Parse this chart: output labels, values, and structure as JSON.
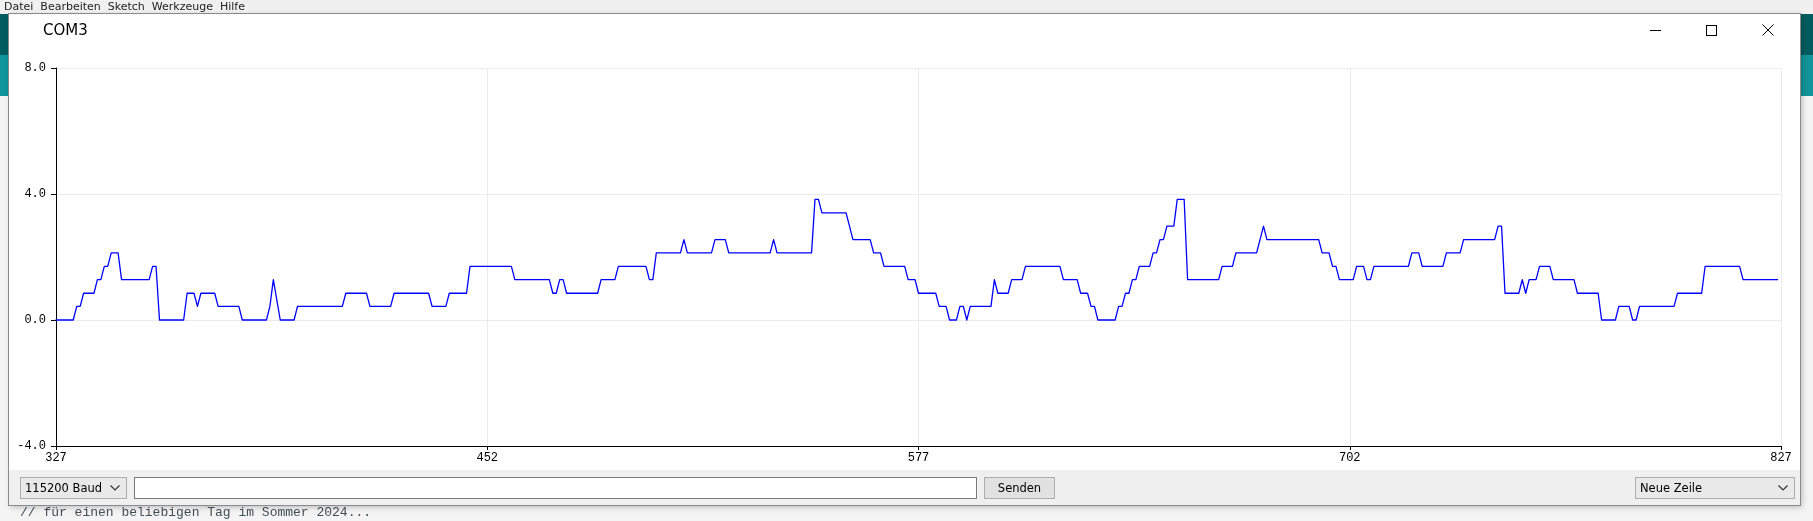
{
  "chart_data": {
    "type": "line",
    "title": "COM3",
    "annotations": [
      "Datei  Bearbeiten  Sketch  Werkzeuge  Hilfe",
      "115200 Baud",
      "Senden",
      "Neue Zeile",
      "// für einen beliebigen Tag im Sommer 2024..."
    ],
    "x": [
      327,
      332,
      333,
      334,
      335,
      338,
      339,
      340,
      341,
      342,
      343,
      345,
      346,
      354,
      355,
      356,
      357,
      364,
      365,
      367,
      368,
      369,
      373,
      374,
      380,
      381,
      388,
      389,
      390,
      392,
      396,
      397,
      410,
      411,
      417,
      418,
      424,
      425,
      435,
      436,
      440,
      441,
      446,
      447,
      459,
      460,
      470,
      471,
      472,
      473,
      474,
      475,
      484,
      485,
      489,
      490,
      498,
      499,
      500,
      501,
      508,
      509,
      510,
      517,
      518,
      521,
      522,
      534,
      535,
      536,
      546,
      547,
      548,
      549,
      556,
      557,
      558,
      563,
      564,
      566,
      567,
      573,
      574,
      576,
      577,
      582,
      583,
      585,
      586,
      588,
      589,
      590,
      591,
      592,
      598,
      599,
      600,
      603,
      604,
      607,
      608,
      618,
      619,
      623,
      624,
      626,
      627,
      628,
      629,
      634,
      635,
      636,
      637,
      638,
      639,
      640,
      641,
      644,
      645,
      646,
      647,
      648,
      649,
      651,
      652,
      654,
      655,
      664,
      665,
      668,
      669,
      675,
      676,
      677,
      678,
      693,
      694,
      696,
      697,
      698,
      699,
      703,
      704,
      706,
      707,
      708,
      709,
      719,
      720,
      722,
      723,
      729,
      730,
      734,
      735,
      744,
      745,
      746,
      747,
      751,
      752,
      753,
      754,
      756,
      757,
      760,
      761,
      767,
      768,
      774,
      775,
      779,
      780,
      783,
      784,
      785,
      786,
      796,
      797,
      804,
      805,
      815,
      816,
      826
    ],
    "values": [
      0,
      0,
      0.43,
      0.43,
      0.85,
      0.85,
      1.28,
      1.28,
      1.7,
      1.7,
      2.13,
      2.13,
      1.28,
      1.28,
      1.7,
      1.7,
      0,
      0,
      0.85,
      0.85,
      0.43,
      0.85,
      0.85,
      0.43,
      0.43,
      0,
      0,
      0.43,
      1.28,
      0,
      0,
      0.43,
      0.43,
      0.85,
      0.85,
      0.43,
      0.43,
      0.85,
      0.85,
      0.43,
      0.43,
      0.85,
      0.85,
      1.7,
      1.7,
      1.28,
      1.28,
      0.85,
      0.85,
      1.28,
      1.28,
      0.85,
      0.85,
      1.28,
      1.28,
      1.7,
      1.7,
      1.28,
      1.28,
      2.13,
      2.13,
      2.55,
      2.13,
      2.13,
      2.55,
      2.55,
      2.13,
      2.13,
      2.55,
      2.13,
      2.13,
      3.83,
      3.83,
      3.4,
      3.4,
      2.98,
      2.55,
      2.55,
      2.13,
      2.13,
      1.7,
      1.7,
      1.28,
      1.28,
      0.85,
      0.85,
      0.43,
      0.43,
      0,
      0,
      0.43,
      0.43,
      0,
      0.43,
      0.43,
      1.28,
      0.85,
      0.85,
      1.28,
      1.28,
      1.7,
      1.7,
      1.28,
      1.28,
      0.85,
      0.85,
      0.43,
      0.43,
      0,
      0,
      0.43,
      0.43,
      0.85,
      0.85,
      1.28,
      1.28,
      1.7,
      1.7,
      2.13,
      2.13,
      2.55,
      2.55,
      2.98,
      2.98,
      3.83,
      3.83,
      1.28,
      1.28,
      1.7,
      1.7,
      2.13,
      2.13,
      2.55,
      2.98,
      2.55,
      2.55,
      2.13,
      2.13,
      1.7,
      1.7,
      1.28,
      1.28,
      1.7,
      1.7,
      1.28,
      1.28,
      1.7,
      1.7,
      2.13,
      2.13,
      1.7,
      1.7,
      2.13,
      2.13,
      2.55,
      2.55,
      2.98,
      2.98,
      0.85,
      0.85,
      1.28,
      0.85,
      1.28,
      1.28,
      1.7,
      1.7,
      1.28,
      1.28,
      0.85,
      0.85,
      0,
      0,
      0.43,
      0.43,
      0,
      0,
      0.43,
      0.43,
      0.85,
      0.85,
      1.7,
      1.7,
      1.28,
      1.28
    ],
    "color": "#0000ff",
    "xlim": [
      327,
      827
    ],
    "xticks": [
      327,
      452,
      577,
      702,
      827
    ],
    "ylim": [
      -4,
      8
    ],
    "yticks": [
      {
        "value": -4,
        "label": "-4.0"
      },
      {
        "value": 0,
        "label": "0.0"
      },
      {
        "value": 4,
        "label": "4.0"
      },
      {
        "value": 8,
        "label": "8.0"
      }
    ],
    "grid": true
  }
}
